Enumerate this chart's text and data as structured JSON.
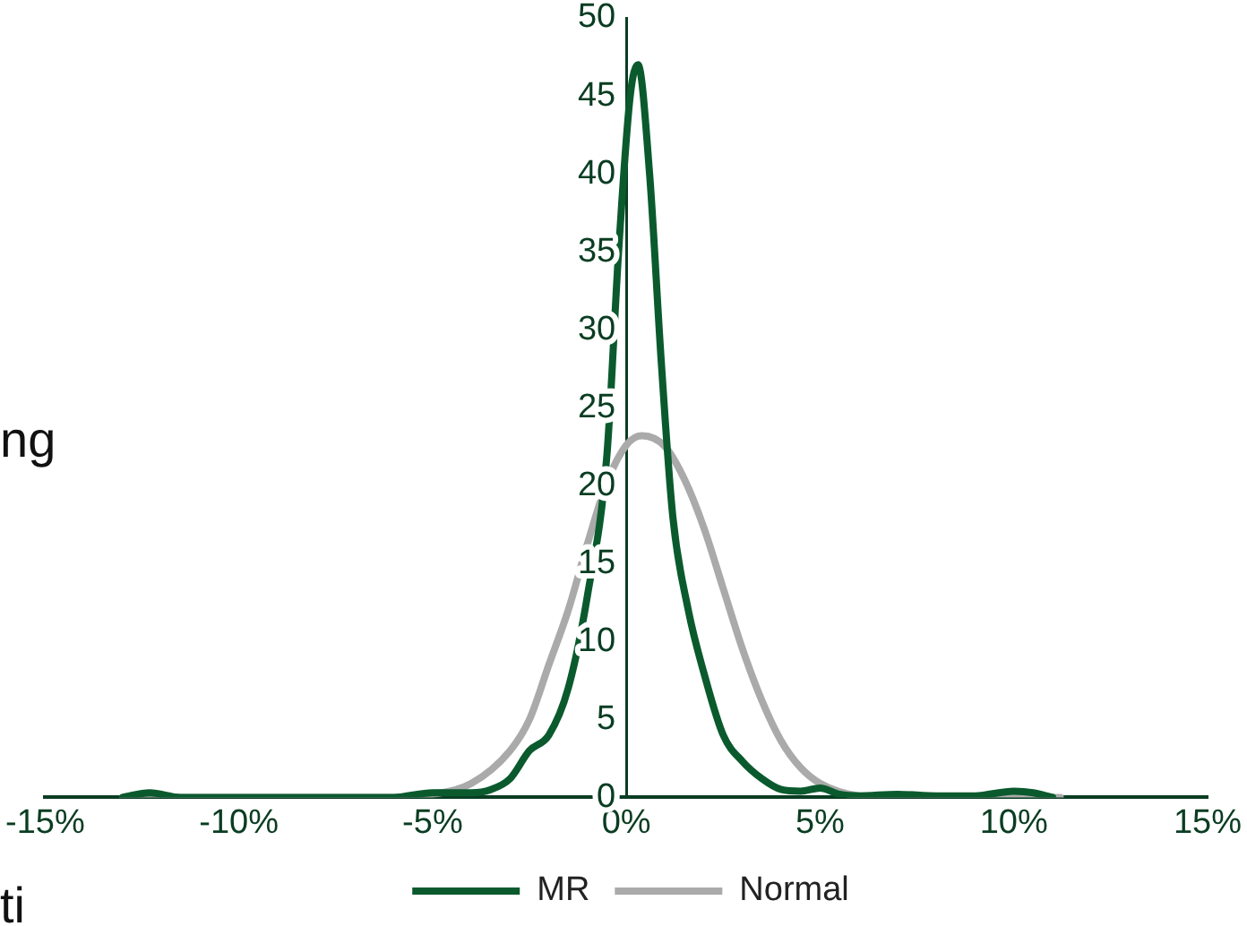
{
  "chart_data": {
    "type": "line",
    "xlim": [
      -15,
      15
    ],
    "xticks": [
      {
        "value": -15,
        "label": "-15%"
      },
      {
        "value": -10,
        "label": "-10%"
      },
      {
        "value": -5,
        "label": "-5%"
      },
      {
        "value": 0,
        "label": "0%"
      },
      {
        "value": 5,
        "label": "5%"
      },
      {
        "value": 10,
        "label": "10%"
      },
      {
        "value": 15,
        "label": "15%"
      }
    ],
    "ylim": [
      0,
      50
    ],
    "yticks": [
      0,
      5,
      10,
      15,
      20,
      25,
      30,
      35,
      40,
      45,
      50
    ],
    "grid": false,
    "legend": "bottom",
    "marker": "none",
    "line_style": "solid",
    "annotations": [
      "ng",
      "ti"
    ],
    "series": [
      {
        "name": "MR",
        "color": "#0b5a2e",
        "x": [
          -13,
          -12.3,
          -11.5,
          -6,
          -5,
          -4,
          -3.5,
          -3,
          -2.5,
          -2,
          -1.5,
          -1,
          -0.5,
          -0.2,
          0.1,
          0.3,
          0.6,
          0.9,
          1.2,
          1.6,
          2,
          2.5,
          3,
          3.5,
          4,
          4.5,
          5,
          5.5,
          6,
          7,
          8,
          9,
          10,
          10.5,
          11
        ],
        "values": [
          0,
          0.3,
          0,
          0,
          0.3,
          0.3,
          0.5,
          1.2,
          3,
          4,
          7,
          13,
          22,
          35,
          45,
          47,
          40,
          28,
          18,
          12,
          8,
          4,
          2.3,
          1.2,
          0.5,
          0.4,
          0.6,
          0.2,
          0.1,
          0.2,
          0.1,
          0.1,
          0.4,
          0.3,
          0
        ]
      },
      {
        "name": "Normal",
        "color": "#aaaaaa",
        "x": [
          -13,
          -6,
          -5,
          -4,
          -3,
          -2.5,
          -2,
          -1.5,
          -1,
          -0.5,
          0,
          0.4,
          1,
          1.5,
          2,
          2.5,
          3,
          3.5,
          4,
          4.5,
          5,
          6,
          7,
          11.2
        ],
        "values": [
          0,
          0,
          0.2,
          0.9,
          3,
          5,
          8.5,
          12,
          16.3,
          20.2,
          22.6,
          23.2,
          22.5,
          20.4,
          17.3,
          13.4,
          9.5,
          6.2,
          3.6,
          1.9,
          0.9,
          0.1,
          0,
          0
        ]
      }
    ]
  }
}
